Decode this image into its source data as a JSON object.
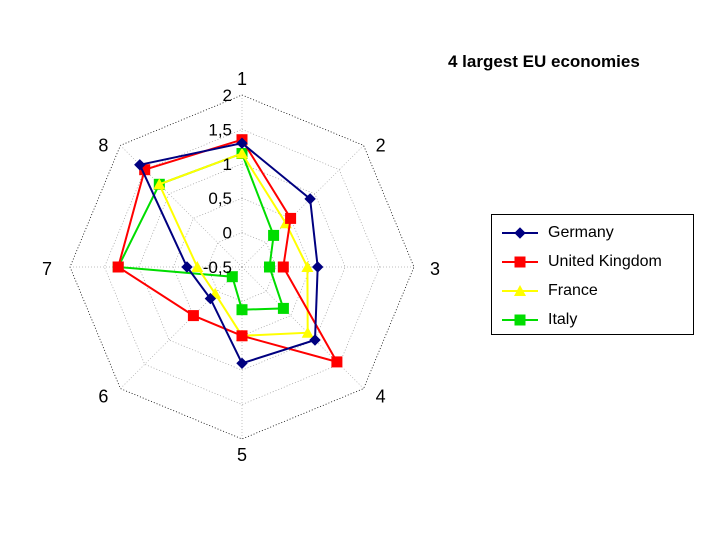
{
  "chart_data": {
    "type": "radar",
    "title": "4 largest EU economies",
    "axes": [
      "1",
      "2",
      "3",
      "4",
      "5",
      "6",
      "7",
      "8"
    ],
    "radial_ticks": [
      "-0,5",
      "0",
      "0,5",
      "1",
      "1,5",
      "2"
    ],
    "radial_range": [
      -0.5,
      2
    ],
    "grid": true,
    "legend_position": "right",
    "series": [
      {
        "name": "Germany",
        "color": "#000080",
        "marker": "diamond",
        "values": [
          1.3,
          0.9,
          0.6,
          1.0,
          0.9,
          0.15,
          0.3,
          1.6
        ]
      },
      {
        "name": "United Kingdom",
        "color": "#ff0000",
        "marker": "square",
        "values": [
          1.35,
          0.5,
          0.1,
          1.45,
          0.5,
          0.5,
          1.3,
          1.5
        ]
      },
      {
        "name": "France",
        "color": "#ffff00",
        "marker": "triangle",
        "values": [
          1.15,
          0.4,
          0.45,
          0.85,
          0.5,
          0.05,
          0.15,
          1.2
        ]
      },
      {
        "name": "Italy",
        "color": "#00dd00",
        "marker": "square",
        "values": [
          1.15,
          0.15,
          -0.1,
          0.35,
          0.12,
          -0.3,
          1.3,
          1.2
        ]
      }
    ]
  }
}
